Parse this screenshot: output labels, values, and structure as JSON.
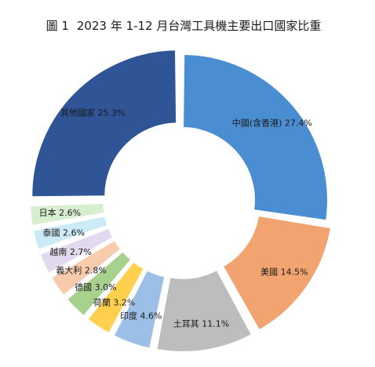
{
  "chart_data": {
    "type": "pie",
    "title_prefix": "圖 1",
    "title": "2023 年 1-12 月台灣工具機主要出口國家比重",
    "unit": "%",
    "slices": [
      {
        "label": "中國(含香港)",
        "value": 27.4,
        "text": "中國(含香港) 27.4%",
        "color": "#4A8DD1",
        "explode": false,
        "text_color": "#1a1a1a"
      },
      {
        "label": "美國",
        "value": 14.5,
        "text": "美國 14.5%",
        "color": "#F2A470",
        "explode": true,
        "text_color": "#1a1a1a"
      },
      {
        "label": "土耳其",
        "value": 11.1,
        "text": "土耳其 11.1%",
        "color": "#BDBDBD",
        "explode": true,
        "text_color": "#1a1a1a"
      },
      {
        "label": "印度",
        "value": 4.6,
        "text": "印度 4.6%",
        "color": "#9BBFE6",
        "explode": true,
        "text_color": "#1a1a1a"
      },
      {
        "label": "荷蘭",
        "value": 3.2,
        "text": "荷蘭 3.2%",
        "color": "#FFD04D",
        "explode": true,
        "text_color": "#1a1a1a"
      },
      {
        "label": "德國",
        "value": 3.0,
        "text": "德國 3.0%",
        "color": "#A9D18E",
        "explode": true,
        "text_color": "#1a1a1a"
      },
      {
        "label": "義大利",
        "value": 2.8,
        "text": "義大利 2.8%",
        "color": "#F8CBAD",
        "explode": true,
        "text_color": "#1a1a1a"
      },
      {
        "label": "越南",
        "value": 2.7,
        "text": "越南 2.7%",
        "color": "#E2D9EE",
        "explode": true,
        "text_color": "#1a1a1a"
      },
      {
        "label": "泰國",
        "value": 2.6,
        "text": "泰國 2.6%",
        "color": "#CDEAF7",
        "explode": true,
        "text_color": "#1a1a1a"
      },
      {
        "label": "日本",
        "value": 2.6,
        "text": "日本 2.6%",
        "color": "#D7EFCF",
        "explode": true,
        "text_color": "#1a1a1a"
      },
      {
        "label": "其他國家",
        "value": 25.3,
        "text": "其他國家 25.3%",
        "color": "#2F5597",
        "explode": true,
        "text_color": "#ffffff"
      }
    ]
  }
}
